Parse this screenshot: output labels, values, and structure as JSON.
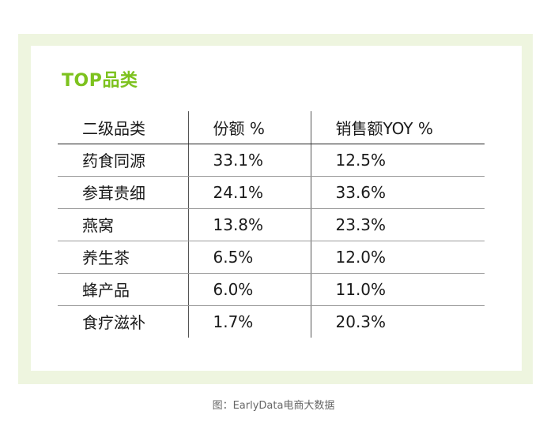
{
  "title": "TOP品类",
  "headers": [
    "二级品类",
    "份额 %",
    "销售额YOY %"
  ],
  "rows": [
    [
      "药食同源",
      "33.1%",
      "12.5%"
    ],
    [
      "参茸贵细",
      "24.1%",
      "33.6%"
    ],
    [
      "燕窝",
      "13.8%",
      "23.3%"
    ],
    [
      "养生茶",
      "6.5%",
      "12.0%"
    ],
    [
      "蜂产品",
      "6.0%",
      "11.0%"
    ],
    [
      "食疗滋补",
      "1.7%",
      "20.3%"
    ]
  ],
  "caption": "图：EarlyData电商大数据",
  "colors": {
    "title": "#7dc21e",
    "frame": "#eef5df"
  }
}
